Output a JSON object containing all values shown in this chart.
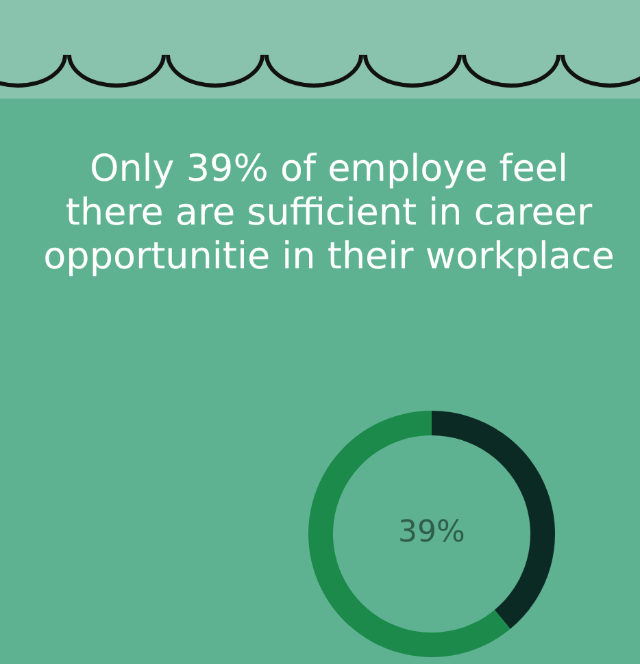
{
  "chart_data": {
    "type": "donut",
    "title": "Only 39% of employe feel there are sufficient in career opportunitie in their workplace",
    "categories": [
      null,
      null
    ],
    "values": [
      39,
      61
    ],
    "colors": [
      "#0c2a24",
      "#1b8a4a"
    ],
    "annotations": [
      "39%"
    ],
    "legend": false
  }
}
